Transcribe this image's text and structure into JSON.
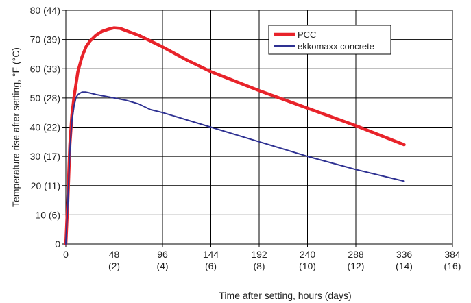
{
  "chart_data": {
    "type": "line",
    "xlabel": "Time after setting, hours (days)",
    "ylabel": "Temperature rise after setting, °F (°C)",
    "xlim": [
      0,
      384
    ],
    "ylim": [
      0,
      80
    ],
    "x_ticks": [
      {
        "value": 0,
        "label": "0",
        "sublabel": ""
      },
      {
        "value": 48,
        "label": "48",
        "sublabel": "(2)"
      },
      {
        "value": 96,
        "label": "96",
        "sublabel": "(4)"
      },
      {
        "value": 144,
        "label": "144",
        "sublabel": "(6)"
      },
      {
        "value": 192,
        "label": "192",
        "sublabel": "(8)"
      },
      {
        "value": 240,
        "label": "240",
        "sublabel": "(10)"
      },
      {
        "value": 288,
        "label": "288",
        "sublabel": "(12)"
      },
      {
        "value": 336,
        "label": "336",
        "sublabel": "(14)"
      },
      {
        "value": 384,
        "label": "384",
        "sublabel": "(16)"
      }
    ],
    "y_ticks": [
      {
        "value": 0,
        "label": "0"
      },
      {
        "value": 10,
        "label": "10 (6)"
      },
      {
        "value": 20,
        "label": "20 (11)"
      },
      {
        "value": 30,
        "label": "30 (17)"
      },
      {
        "value": 40,
        "label": "40 (22)"
      },
      {
        "value": 50,
        "label": "50 (28)"
      },
      {
        "value": 60,
        "label": "60 (33)"
      },
      {
        "value": 70,
        "label": "70 (39)"
      },
      {
        "value": 80,
        "label": "80 (44)"
      }
    ],
    "grid": true,
    "legend_position": "top-right",
    "series": [
      {
        "name": "PCC",
        "color": "#e8232a",
        "x": [
          0,
          2,
          4,
          6,
          8,
          12,
          16,
          20,
          24,
          30,
          36,
          42,
          48,
          54,
          60,
          72,
          96,
          120,
          144,
          192,
          240,
          288,
          336
        ],
        "y": [
          0,
          15,
          34,
          44,
          50,
          59,
          64,
          67.5,
          69.5,
          71.5,
          72.8,
          73.5,
          74,
          73.8,
          73,
          71.5,
          67.5,
          63,
          59,
          52.5,
          46.5,
          40.5,
          34
        ]
      },
      {
        "name": "ekkomaxx concrete",
        "color": "#2e3192",
        "x": [
          0,
          2,
          4,
          6,
          8,
          10,
          12,
          16,
          20,
          24,
          30,
          36,
          48,
          60,
          72,
          84,
          96,
          144,
          192,
          240,
          288,
          336
        ],
        "y": [
          0,
          14,
          32,
          42,
          47,
          50,
          51.2,
          52,
          52,
          51.7,
          51.2,
          50.8,
          50,
          49.2,
          48,
          46,
          45,
          40,
          35,
          30,
          25.5,
          21.5
        ]
      }
    ]
  }
}
